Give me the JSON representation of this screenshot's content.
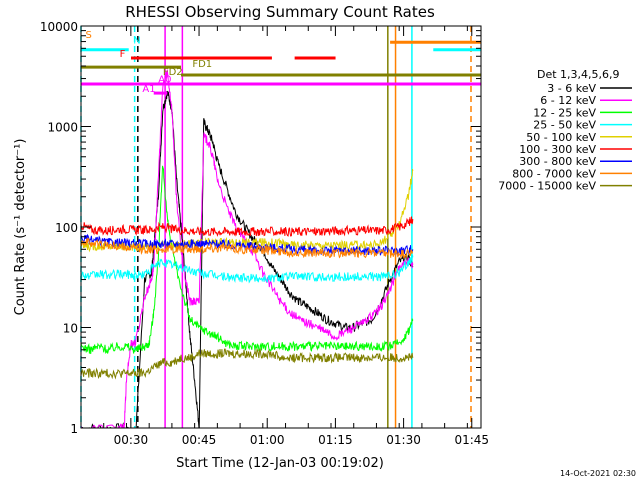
{
  "chart_data": {
    "type": "line",
    "title": "RHESSI Observing Summary Count Rates",
    "xlabel": "Start Time (12-Jan-03 00:19:02)",
    "ylabel": "Count Rate (s⁻¹ detector⁻¹)",
    "x_unit": "minutes after 00:19:02",
    "x_range": [
      0,
      88
    ],
    "y_scale": "log",
    "ylim": [
      1,
      10000
    ],
    "x_ticks": [
      {
        "t": 10.97,
        "label": "00:30"
      },
      {
        "t": 25.97,
        "label": "00:45"
      },
      {
        "t": 40.97,
        "label": "01:00"
      },
      {
        "t": 55.97,
        "label": "01:15"
      },
      {
        "t": 70.97,
        "label": "01:30"
      },
      {
        "t": 85.97,
        "label": "01:45"
      }
    ],
    "y_ticks": [
      {
        "v": 1,
        "label": "1"
      },
      {
        "v": 10,
        "label": "10"
      },
      {
        "v": 100,
        "label": "100"
      },
      {
        "v": 1000,
        "label": "1000"
      },
      {
        "v": 10000,
        "label": "10000"
      }
    ],
    "legend_title": "Det 1,3,4,5,6,9",
    "legend_position": "right",
    "series": [
      {
        "name": "3 - 6 keV",
        "color": "#000000",
        "x": [
          0,
          5,
          10,
          11,
          12,
          14,
          15.5,
          16,
          17,
          18,
          19,
          20,
          21,
          22,
          23,
          24,
          25,
          26,
          27,
          28,
          29,
          30,
          32,
          34,
          36,
          38,
          40,
          42,
          44,
          46,
          48,
          50,
          52,
          54,
          56,
          58,
          60,
          62,
          64,
          66,
          68,
          70,
          72,
          73
        ],
        "y": [
          1,
          1,
          1,
          0.8,
          0.8,
          30,
          35,
          60,
          200,
          1500,
          2200,
          1500,
          300,
          100,
          30,
          8,
          3,
          1,
          1100,
          900,
          700,
          450,
          250,
          140,
          100,
          75,
          60,
          40,
          30,
          22,
          18,
          16,
          14,
          12,
          11,
          10,
          10,
          11,
          12,
          18,
          30,
          45,
          50,
          40
        ]
      },
      {
        "name": "6 - 12 keV",
        "color": "#ff00ff",
        "x": [
          0,
          8,
          9.5,
          10,
          11,
          12,
          14,
          15.5,
          16,
          17,
          18,
          19,
          20,
          21,
          22,
          23,
          24,
          25,
          26,
          27,
          28,
          29,
          30,
          32,
          34,
          36,
          38,
          40,
          42,
          44,
          46,
          48,
          50,
          52,
          54,
          56,
          58,
          60,
          62,
          64,
          66,
          68,
          70,
          72,
          73
        ],
        "y": [
          1,
          1,
          1,
          3,
          7,
          7,
          20,
          30,
          40,
          300,
          2500,
          3500,
          1500,
          200,
          60,
          30,
          18,
          18,
          18,
          800,
          700,
          500,
          300,
          160,
          100,
          75,
          55,
          35,
          25,
          18,
          14,
          12,
          11,
          10,
          9,
          8,
          9,
          10,
          11,
          13,
          16,
          24,
          40,
          45,
          42
        ]
      },
      {
        "name": "12 - 25 keV",
        "color": "#00ff00",
        "x": [
          0,
          2,
          4,
          6,
          8,
          10,
          12,
          14,
          15,
          16,
          17,
          18,
          19,
          20,
          22,
          24,
          26,
          28,
          30,
          32,
          34,
          36,
          38,
          40,
          42,
          44,
          46,
          48,
          50,
          52,
          54,
          56,
          58,
          60,
          62,
          64,
          66,
          68,
          70,
          72,
          73
        ],
        "y": [
          6.5,
          6,
          6.5,
          6,
          6.5,
          6.5,
          6,
          6.5,
          7,
          14,
          50,
          420,
          120,
          60,
          25,
          12,
          10,
          9,
          8,
          7,
          6.5,
          6.5,
          6.5,
          6.5,
          6.5,
          6.5,
          6.5,
          6.5,
          6.5,
          6.5,
          6.5,
          6.5,
          6.5,
          6.5,
          6.5,
          6.5,
          6.5,
          6.5,
          7,
          9,
          12
        ]
      },
      {
        "name": "25 - 50 keV",
        "color": "#00ffff",
        "x": [
          0,
          2,
          4,
          6,
          8,
          10,
          12,
          14,
          16,
          18,
          20,
          22,
          24,
          26,
          28,
          30,
          32,
          34,
          36,
          38,
          40,
          42,
          44,
          46,
          48,
          50,
          52,
          54,
          56,
          58,
          60,
          62,
          64,
          66,
          68,
          70,
          72,
          73
        ],
        "y": [
          34,
          32,
          34,
          33,
          34,
          34,
          33,
          34,
          40,
          45,
          42,
          40,
          37,
          35,
          34,
          33,
          32,
          31,
          31,
          31,
          31,
          31,
          32,
          32,
          33,
          32,
          32,
          32,
          32,
          32,
          32,
          32,
          32,
          32,
          33,
          35,
          45,
          50
        ]
      },
      {
        "name": "50 - 100 keV",
        "color": "#e0d000",
        "x": [
          0,
          2,
          4,
          6,
          8,
          10,
          12,
          14,
          16,
          18,
          20,
          22,
          24,
          26,
          28,
          30,
          32,
          34,
          36,
          38,
          40,
          42,
          44,
          45,
          46,
          48,
          50,
          52,
          54,
          56,
          58,
          60,
          62,
          64,
          66,
          68,
          70,
          72,
          73
        ],
        "y": [
          65,
          64,
          65,
          64,
          65,
          64,
          64,
          65,
          65,
          66,
          66,
          67,
          68,
          69,
          70,
          70,
          70,
          70,
          70,
          70,
          70,
          70,
          70,
          66,
          66,
          66,
          66,
          66,
          66,
          66,
          66,
          66,
          66,
          66,
          70,
          80,
          110,
          200,
          360
        ]
      },
      {
        "name": "100 - 300 keV",
        "color": "#ff0000",
        "x": [
          0,
          2,
          4,
          6,
          8,
          10,
          12,
          14,
          16,
          18,
          20,
          22,
          24,
          26,
          28,
          30,
          32,
          34,
          36,
          38,
          40,
          42,
          44,
          46,
          48,
          50,
          52,
          54,
          56,
          58,
          60,
          62,
          64,
          66,
          68,
          70,
          72,
          73
        ],
        "y": [
          105,
          95,
          92,
          92,
          95,
          95,
          93,
          93,
          95,
          100,
          95,
          93,
          92,
          90,
          90,
          90,
          90,
          90,
          90,
          90,
          90,
          90,
          90,
          90,
          90,
          90,
          90,
          92,
          92,
          92,
          92,
          92,
          92,
          92,
          95,
          100,
          110,
          120
        ]
      },
      {
        "name": "300 - 800 keV",
        "color": "#0000ff",
        "x": [
          0,
          2,
          4,
          6,
          8,
          10,
          12,
          14,
          16,
          18,
          20,
          22,
          24,
          26,
          28,
          30,
          32,
          34,
          36,
          38,
          40,
          42,
          44,
          46,
          48,
          50,
          52,
          54,
          56,
          58,
          60,
          62,
          64,
          66,
          68,
          70,
          72,
          73
        ],
        "y": [
          78,
          74,
          72,
          70,
          70,
          69,
          68,
          68,
          68,
          68,
          68,
          68,
          68,
          68,
          68,
          68,
          67,
          66,
          65,
          64,
          63,
          62,
          62,
          60,
          60,
          58,
          58,
          58,
          58,
          58,
          58,
          58,
          58,
          58,
          58,
          58,
          60,
          60
        ]
      },
      {
        "name": "800 - 7000 keV",
        "color": "#ff8000",
        "x": [
          0,
          2,
          4,
          6,
          8,
          10,
          12,
          14,
          16,
          18,
          20,
          22,
          24,
          26,
          28,
          30,
          32,
          34,
          36,
          38,
          40,
          42,
          44,
          46,
          48,
          50,
          52,
          54,
          56,
          58,
          60,
          62,
          64,
          66,
          68,
          70,
          72,
          73
        ],
        "y": [
          72,
          70,
          68,
          66,
          64,
          62,
          61,
          60,
          60,
          60,
          60,
          60,
          60,
          61,
          62,
          62,
          62,
          61,
          60,
          60,
          59,
          58,
          57,
          56,
          56,
          55,
          55,
          55,
          55,
          55,
          55,
          55,
          55,
          54,
          54,
          54,
          54,
          55
        ]
      },
      {
        "name": "7000 - 15000 keV",
        "color": "#808000",
        "x": [
          0,
          2,
          4,
          6,
          8,
          10,
          12,
          14,
          16,
          18,
          20,
          22,
          24,
          26,
          28,
          30,
          32,
          34,
          36,
          38,
          40,
          42,
          44,
          46,
          48,
          50,
          52,
          54,
          56,
          58,
          60,
          62,
          64,
          66,
          68,
          70,
          72,
          73
        ],
        "y": [
          3.5,
          3.5,
          3.5,
          3.5,
          3.5,
          3.5,
          3.5,
          3.5,
          4,
          4.5,
          4.5,
          5,
          5,
          5.5,
          5.5,
          5.5,
          5.5,
          5.5,
          5.5,
          5.5,
          5.5,
          5.5,
          5,
          5,
          5,
          5,
          5,
          5,
          5,
          5,
          5,
          5,
          5,
          5,
          5,
          5,
          5,
          5
        ]
      }
    ],
    "flags": [
      {
        "label": "S",
        "color": "#ff8000",
        "text_at": [
          1,
          7600
        ],
        "segments": []
      },
      {
        "label": "N",
        "color": "#00ffff",
        "text_at": [
          11.5,
          6700
        ],
        "segments": [
          [
            0,
            10.5,
            5800
          ],
          [
            77.5,
            88,
            5800
          ]
        ]
      },
      {
        "label": "F",
        "color": "#ff0000",
        "text_at": [
          8.5,
          4900
        ],
        "segments": [
          [
            11,
            42,
            4800
          ],
          [
            47,
            56,
            4800
          ]
        ]
      },
      {
        "label": "FD1",
        "color": "#808000",
        "text_at": [
          24.5,
          3900
        ],
        "segments": [
          [
            0,
            22,
            3900
          ]
        ]
      },
      {
        "label": "FD2",
        "color": "#808000",
        "text_at": [
          18,
          3250
        ],
        "segments": [
          [
            22,
            88,
            3250
          ]
        ]
      },
      {
        "label": "A0",
        "color": "#ff00ff",
        "text_at": [
          17,
          2750
        ],
        "segments": [
          [
            0,
            88,
            2650
          ]
        ]
      },
      {
        "label": "A1",
        "color": "#ff00ff",
        "text_at": [
          13.5,
          2200
        ],
        "segments": [
          [
            16,
            19,
            2150
          ]
        ]
      },
      {
        "label": "",
        "color": "#ff8000",
        "text_at": null,
        "segments": [
          [
            68,
            88,
            6900
          ]
        ]
      }
    ],
    "vertical_lines": [
      {
        "t": 0,
        "color": "#00ffff",
        "dashed": true
      },
      {
        "t": 11.8,
        "color": "#00ffff",
        "dashed": true
      },
      {
        "t": 12.5,
        "color": "#000000",
        "dashed": true
      },
      {
        "t": 18.5,
        "color": "#ff00ff",
        "dashed": false
      },
      {
        "t": 22.3,
        "color": "#ff00ff",
        "dashed": false
      },
      {
        "t": 67.5,
        "color": "#808000",
        "dashed": false
      },
      {
        "t": 69.2,
        "color": "#ff8000",
        "dashed": false
      },
      {
        "t": 72.8,
        "color": "#00ffff",
        "dashed": false
      },
      {
        "t": 85.8,
        "color": "#ff8000",
        "dashed": true
      }
    ]
  },
  "footer_timestamp": "14-Oct-2021 02:30"
}
